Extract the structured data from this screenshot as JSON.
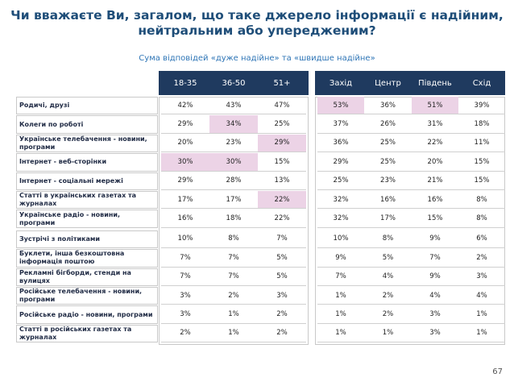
{
  "header": {
    "title": "Чи вважаєте Ви, загалом, що таке джерело інформації є надійним, нейтральним або упередженим?",
    "subtitle": "Сума відповідей «дуже надійне» та «швидше надійне»"
  },
  "table": {
    "columns": [
      "18-35",
      "36-50",
      "51+",
      "Захід",
      "Центр",
      "Південь",
      "Схід"
    ],
    "rows": [
      [
        "Родичі, друзі",
        "42%",
        "43%",
        "47%",
        "53%",
        "36%",
        "51%",
        "39%"
      ],
      [
        "Колеги по роботі",
        "29%",
        "34%",
        "25%",
        "37%",
        "26%",
        "31%",
        "18%"
      ],
      [
        "Українське телебачення - новини, програми",
        "20%",
        "23%",
        "29%",
        "36%",
        "25%",
        "22%",
        "11%"
      ],
      [
        "Інтернет - веб-сторінки",
        "30%",
        "30%",
        "15%",
        "29%",
        "25%",
        "20%",
        "15%"
      ],
      [
        "Інтернет - соціальні мережі",
        "29%",
        "28%",
        "13%",
        "25%",
        "23%",
        "21%",
        "15%"
      ],
      [
        "Статті в українських газетах та журналах",
        "17%",
        "17%",
        "22%",
        "32%",
        "16%",
        "16%",
        "8%"
      ],
      [
        "Українське радіо - новини, програми",
        "16%",
        "18%",
        "22%",
        "32%",
        "17%",
        "15%",
        "8%"
      ],
      [
        "Зустрічі з політиками",
        "10%",
        "8%",
        "7%",
        "10%",
        "8%",
        "9%",
        "6%"
      ],
      [
        "Буклети, інша безкоштовна інформація поштою",
        "7%",
        "7%",
        "5%",
        "9%",
        "5%",
        "7%",
        "2%"
      ],
      [
        "Рекламні бігборди, стенди на вулицях",
        "7%",
        "7%",
        "5%",
        "7%",
        "4%",
        "9%",
        "3%"
      ],
      [
        "Російське телебачення - новини, програми",
        "3%",
        "2%",
        "3%",
        "1%",
        "2%",
        "4%",
        "4%"
      ],
      [
        "Російське радіо - новини, програми",
        "3%",
        "1%",
        "2%",
        "1%",
        "2%",
        "3%",
        "1%"
      ],
      [
        "Статті в російських газетах та журналах",
        "2%",
        "1%",
        "2%",
        "1%",
        "1%",
        "3%",
        "1%"
      ]
    ]
  },
  "page_number": "67"
}
